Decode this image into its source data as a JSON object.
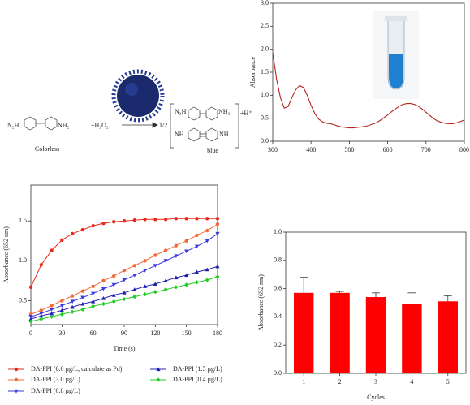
{
  "scheme": {
    "reagent_left": "N₂H",
    "reagent_right": "NH₂",
    "oxidant": "+H₂O₂",
    "ratio": "1/2",
    "product_top_left": "N₂H",
    "product_top_right": "NH₂",
    "product_bottom_left": "NH",
    "product_bottom_right": "NH",
    "proton": "+H⁺",
    "left_caption": "Colorless",
    "right_caption": "blue"
  },
  "chart_data": [
    {
      "type": "line",
      "ylabel": "Absorbance",
      "color": "#b3261e",
      "x": [
        300,
        310,
        320,
        330,
        340,
        350,
        360,
        370,
        380,
        390,
        400,
        410,
        420,
        430,
        440,
        450,
        460,
        470,
        480,
        490,
        500,
        510,
        520,
        530,
        540,
        550,
        560,
        570,
        580,
        590,
        600,
        610,
        620,
        630,
        640,
        650,
        660,
        670,
        680,
        690,
        700,
        710,
        720,
        730,
        740,
        750,
        760,
        770,
        780,
        790,
        800
      ],
      "values": [
        1.92,
        1.35,
        0.95,
        0.72,
        0.75,
        0.95,
        1.12,
        1.21,
        1.17,
        1.0,
        0.78,
        0.6,
        0.48,
        0.42,
        0.39,
        0.38,
        0.36,
        0.33,
        0.31,
        0.3,
        0.29,
        0.29,
        0.3,
        0.31,
        0.32,
        0.34,
        0.37,
        0.4,
        0.45,
        0.51,
        0.57,
        0.64,
        0.7,
        0.76,
        0.8,
        0.82,
        0.82,
        0.8,
        0.76,
        0.7,
        0.63,
        0.56,
        0.49,
        0.44,
        0.41,
        0.39,
        0.38,
        0.38,
        0.4,
        0.43,
        0.46
      ],
      "xlim": [
        300,
        800
      ],
      "xticks": [
        300,
        400,
        500,
        600,
        700,
        800
      ],
      "ylim": [
        0,
        3
      ],
      "yticks": [
        {
          "value": 0,
          "label": "0.0"
        },
        0.5,
        {
          "value": 1,
          "label": "1.0"
        },
        1.5,
        {
          "value": 2,
          "label": "2.0"
        },
        2.5,
        {
          "value": 3,
          "label": "3.0"
        }
      ]
    },
    {
      "type": "line",
      "xlabel": "Time (s)",
      "ylabel": "Absorbance (652 nm)",
      "x": [
        0,
        10,
        20,
        30,
        40,
        50,
        60,
        70,
        80,
        90,
        100,
        110,
        120,
        130,
        140,
        150,
        160,
        170,
        180
      ],
      "series": [
        {
          "name": "DA-PPI (6.0 µg/L, calculate as Pd)",
          "color": "#e8291c",
          "marker": "circle",
          "values": [
            0.67,
            0.95,
            1.13,
            1.26,
            1.34,
            1.39,
            1.44,
            1.47,
            1.49,
            1.5,
            1.51,
            1.52,
            1.52,
            1.52,
            1.53,
            1.53,
            1.53,
            1.53,
            1.53
          ]
        },
        {
          "name": "DA-PPI (3.0 µg/L)",
          "color": "#f26b3a",
          "marker": "circle",
          "values": [
            0.33,
            0.38,
            0.44,
            0.5,
            0.56,
            0.62,
            0.68,
            0.75,
            0.81,
            0.88,
            0.94,
            1.0,
            1.07,
            1.13,
            1.19,
            1.25,
            1.32,
            1.38,
            1.46
          ]
        },
        {
          "name": "DA-PPI (0.8 µg/L)",
          "color": "#3a3ae0",
          "marker": "triangle-down",
          "values": [
            0.3,
            0.34,
            0.39,
            0.44,
            0.49,
            0.54,
            0.59,
            0.65,
            0.7,
            0.76,
            0.82,
            0.88,
            0.94,
            1.0,
            1.06,
            1.12,
            1.18,
            1.25,
            1.34
          ]
        },
        {
          "name": "DA-PPI (1.5 µg/L)",
          "color": "#2020b0",
          "marker": "triangle-up",
          "values": [
            0.27,
            0.31,
            0.34,
            0.38,
            0.42,
            0.46,
            0.49,
            0.53,
            0.57,
            0.6,
            0.64,
            0.68,
            0.71,
            0.75,
            0.79,
            0.82,
            0.86,
            0.89,
            0.93
          ]
        },
        {
          "name": "DA-PPI (0.4 µg/L)",
          "color": "#22cc22",
          "marker": "diamond",
          "values": [
            0.24,
            0.27,
            0.3,
            0.33,
            0.36,
            0.39,
            0.43,
            0.46,
            0.49,
            0.52,
            0.55,
            0.58,
            0.61,
            0.64,
            0.67,
            0.7,
            0.73,
            0.76,
            0.8
          ]
        }
      ],
      "xlim": [
        0,
        180
      ],
      "xticks": [
        0,
        30,
        60,
        90,
        120,
        150,
        180
      ],
      "ylim": [
        0.2,
        1.95
      ],
      "yticks": [
        0.5,
        {
          "value": 1,
          "label": "1.0"
        },
        1.5
      ]
    },
    {
      "type": "bar",
      "xlabel": "Cycles",
      "ylabel": "Absorbance (652 nm)",
      "color": "#ff0000",
      "categories": [
        "1",
        "2",
        "3",
        "4",
        "5"
      ],
      "values": [
        0.57,
        0.57,
        0.54,
        0.49,
        0.51
      ],
      "errors": [
        0.11,
        0.01,
        0.03,
        0.08,
        0.04
      ],
      "ylim": [
        0,
        1
      ],
      "yticks": [
        {
          "value": 0,
          "label": "0.0"
        },
        0.2,
        0.4,
        0.6,
        0.8,
        {
          "value": 1,
          "label": "1.0"
        }
      ]
    }
  ]
}
